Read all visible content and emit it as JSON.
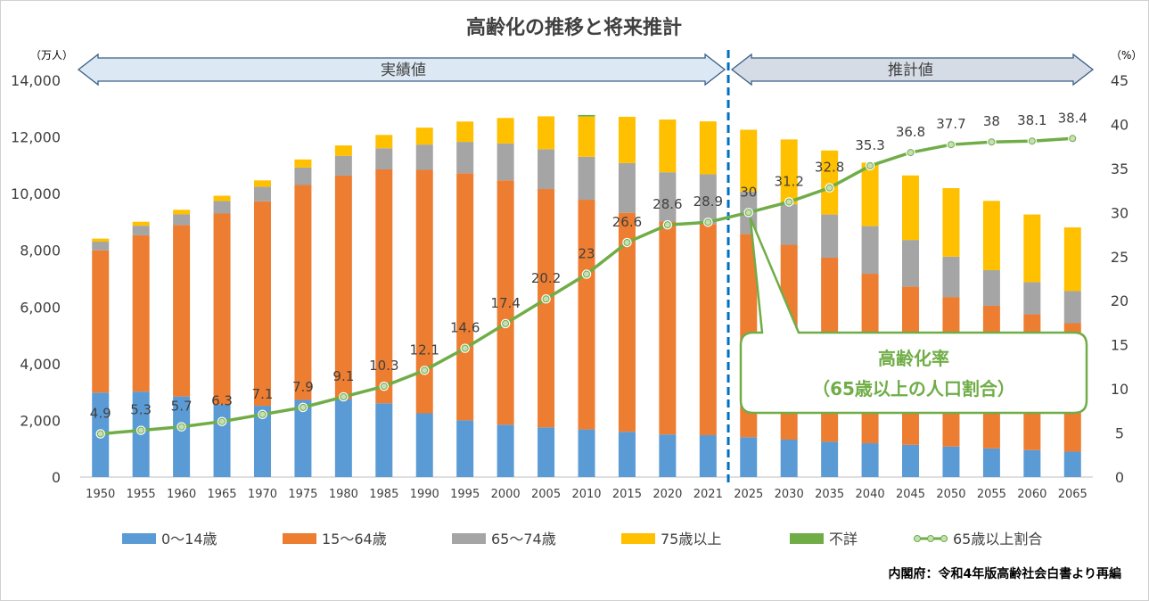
{
  "chart_data": {
    "type": "bar",
    "title": "高齢化の推移と将来推計",
    "y_left_unit": "（万人）",
    "y_right_unit": "（%）",
    "ylim_left": [
      0,
      14000
    ],
    "ylim_right": [
      0,
      45
    ],
    "y_left_ticks": [
      "0",
      "2,000",
      "4,000",
      "6,000",
      "8,000",
      "10,000",
      "12,000",
      "14,000"
    ],
    "y_right_ticks": [
      "0",
      "5",
      "10",
      "15",
      "20",
      "25",
      "30",
      "35",
      "40",
      "45"
    ],
    "categories": [
      "1950",
      "1955",
      "1960",
      "1965",
      "1970",
      "1975",
      "1980",
      "1985",
      "1990",
      "1995",
      "2000",
      "2005",
      "2010",
      "2015",
      "2020",
      "2021",
      "2025",
      "2030",
      "2035",
      "2040",
      "2045",
      "2050",
      "2055",
      "2060",
      "2065"
    ],
    "stacked": true,
    "series": [
      {
        "name": "0～14歳",
        "color": "#5b9bd5",
        "values": [
          2979,
          3012,
          2843,
          2553,
          2515,
          2722,
          2751,
          2603,
          2249,
          2001,
          1847,
          1752,
          1680,
          1595,
          1503,
          1478,
          1407,
          1321,
          1246,
          1194,
          1138,
          1077,
          1012,
          951,
          898
        ]
      },
      {
        "name": "15～64歳",
        "color": "#ed7d31",
        "values": [
          5017,
          5517,
          6047,
          6744,
          7212,
          7581,
          7883,
          8251,
          8590,
          8716,
          8622,
          8409,
          8103,
          7728,
          7509,
          7450,
          7170,
          6875,
          6494,
          5978,
          5584,
          5275,
          5028,
          4793,
          4529
        ]
      },
      {
        "name": "65～74歳",
        "color": "#a5a5a5",
        "values": [
          309,
          338,
          376,
          439,
          516,
          618,
          700,
          745,
          892,
          1109,
          1301,
          1407,
          1517,
          1755,
          1742,
          1754,
          1497,
          1428,
          1522,
          1681,
          1643,
          1424,
          1258,
          1133,
          1133
        ]
      },
      {
        "name": "75歳以上",
        "color": "#ffc000",
        "values": [
          107,
          139,
          163,
          189,
          224,
          284,
          366,
          471,
          597,
          717,
          900,
          1160,
          1419,
          1632,
          1860,
          1867,
          2180,
          2288,
          2260,
          2239,
          2277,
          2417,
          2446,
          2387,
          2248
        ]
      },
      {
        "name": "不詳",
        "color": "#70ad47",
        "values": [
          0,
          0,
          0,
          0,
          0,
          0,
          0,
          0,
          0,
          0,
          0,
          0,
          57,
          0,
          0,
          0,
          0,
          0,
          0,
          0,
          0,
          0,
          0,
          0,
          0
        ]
      }
    ],
    "line_series": {
      "name": "65歳以上割合",
      "color": "#70ad47",
      "values": [
        4.9,
        5.3,
        5.7,
        6.3,
        7.1,
        7.9,
        9.1,
        10.3,
        12.1,
        14.6,
        17.4,
        20.2,
        23,
        26.6,
        28.6,
        28.9,
        30,
        31.2,
        32.8,
        35.3,
        36.8,
        37.7,
        38,
        38.1,
        38.4
      ]
    },
    "period_actual": "実績値",
    "period_projection": "推計値",
    "divider_after": "2021",
    "callout": {
      "line1": "高齢化率",
      "line2": "（65歳以上の人口割合）",
      "points_to": "2025"
    },
    "source": "内閣府：令和4年版高齢社会白書より再編",
    "legend_placement": "bottom",
    "grid": false
  }
}
